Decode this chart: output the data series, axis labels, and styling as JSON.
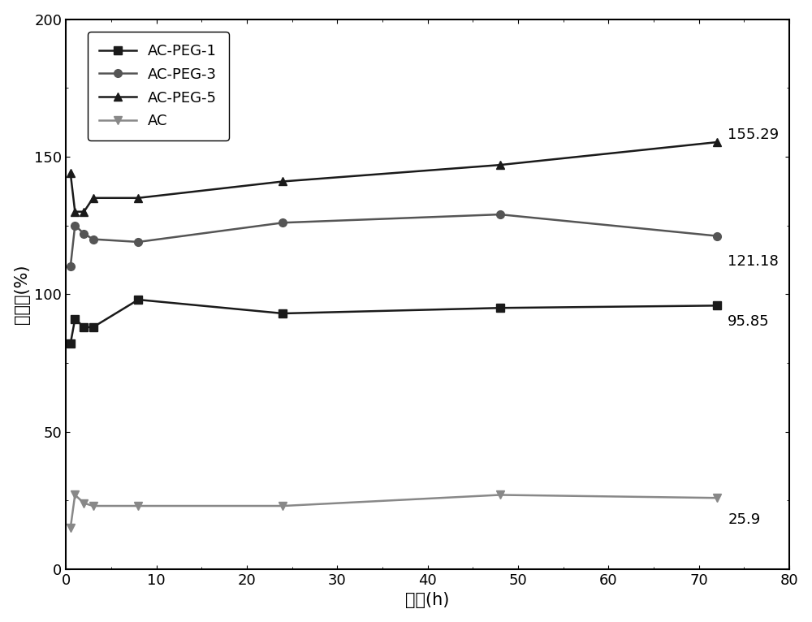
{
  "series": {
    "AC-PEG-1": {
      "x": [
        0.5,
        1,
        2,
        3,
        8,
        24,
        48,
        72
      ],
      "y": [
        82,
        91,
        88,
        88,
        98,
        93,
        95,
        95.85
      ],
      "marker": "s",
      "color": "#1a1a1a",
      "label": "AC-PEG-1",
      "final_label": "95.85",
      "ann_y": 90
    },
    "AC-PEG-3": {
      "x": [
        0.5,
        1,
        2,
        3,
        8,
        24,
        48,
        72
      ],
      "y": [
        110,
        125,
        122,
        120,
        119,
        126,
        129,
        121.18
      ],
      "marker": "o",
      "color": "#555555",
      "label": "AC-PEG-3",
      "final_label": "121.18",
      "ann_y": 112
    },
    "AC-PEG-5": {
      "x": [
        0.5,
        1,
        2,
        3,
        8,
        24,
        48,
        72
      ],
      "y": [
        144,
        130,
        130,
        135,
        135,
        141,
        147,
        155.29
      ],
      "marker": "^",
      "color": "#1a1a1a",
      "label": "AC-PEG-5",
      "final_label": "155.29",
      "ann_y": 158
    },
    "AC": {
      "x": [
        0.5,
        1,
        2,
        3,
        8,
        24,
        48,
        72
      ],
      "y": [
        15,
        27,
        24,
        23,
        23,
        23,
        27,
        25.9
      ],
      "marker": "v",
      "color": "#888888",
      "label": "AC",
      "final_label": "25.9",
      "ann_y": 18
    }
  },
  "series_order": [
    "AC-PEG-1",
    "AC-PEG-3",
    "AC-PEG-5",
    "AC"
  ],
  "xlabel": "时间(h)",
  "ylabel": "吸液率(%)",
  "xlim": [
    0,
    80
  ],
  "ylim": [
    0,
    200
  ],
  "xticks": [
    0,
    10,
    20,
    30,
    40,
    50,
    60,
    70,
    80
  ],
  "yticks": [
    0,
    50,
    100,
    150,
    200
  ],
  "ann_x": 73.2,
  "linewidth": 1.8,
  "markersize": 7,
  "fontsize_label": 15,
  "fontsize_tick": 13,
  "fontsize_legend": 13,
  "fontsize_annotation": 13
}
